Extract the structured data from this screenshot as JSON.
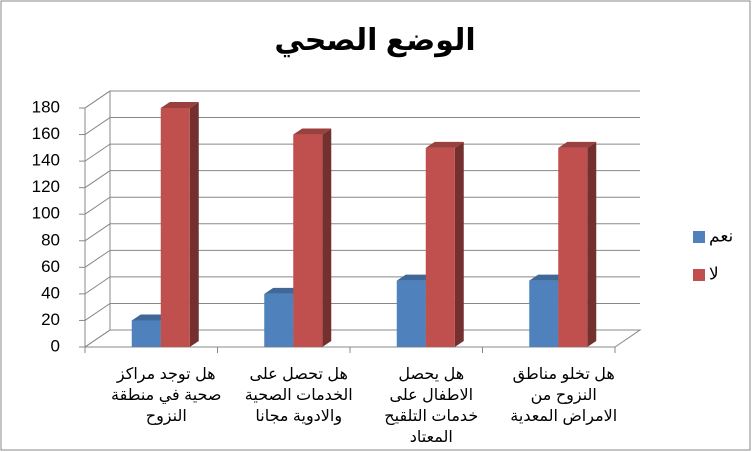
{
  "chart_data": {
    "type": "bar3d",
    "title": "الوضع الصحي",
    "categories": [
      "هل توجد مراكز صحية في منطقة النزوح",
      "هل تحصل على الخدمات الصحية والادوية مجانا",
      "هل يحصل الاطفال على خدمات التلقيح المعتاد",
      "هل تخلو مناطق النزوح من الامراض المعدية"
    ],
    "series": [
      {
        "name": "نعم",
        "color": "#4f81bd",
        "values": [
          20,
          40,
          50,
          50
        ]
      },
      {
        "name": "لا",
        "color": "#c0504d",
        "values": [
          180,
          160,
          150,
          150
        ]
      }
    ],
    "ylim": [
      0,
      180
    ],
    "yticks": [
      0,
      20,
      40,
      60,
      80,
      100,
      120,
      140,
      160,
      180
    ],
    "grid": true,
    "legend": "right"
  }
}
